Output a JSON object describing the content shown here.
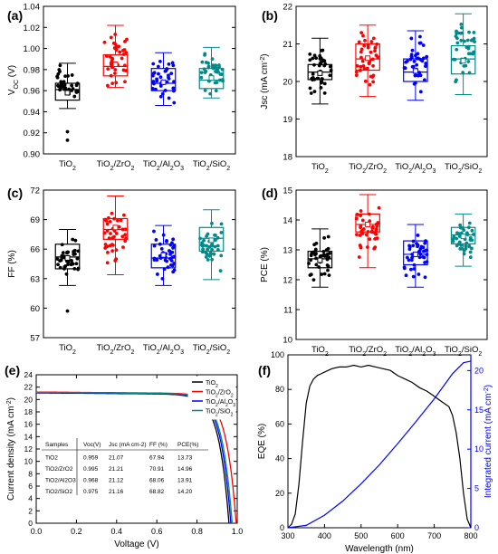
{
  "chart_data": [
    {
      "type": "box",
      "panel_label": "(a)",
      "ylabel": "V",
      "ylabel_sub": "OC",
      "ylabel_unit": " (V)",
      "ylim": [
        0.9,
        1.04
      ],
      "yticks": [
        "0.90",
        "0.92",
        "0.94",
        "0.96",
        "0.98",
        "1.00",
        "1.02",
        "1.04"
      ],
      "categories": [
        {
          "main": "TiO",
          "sub": "2",
          "rest": ""
        },
        {
          "main": "TiO",
          "sub": "2",
          "rest": "/ZrO",
          "sub2": "2"
        },
        {
          "main": "TiO",
          "sub": "2",
          "rest": "/Al",
          "sub2": "2",
          "rest2": "O",
          "sub3": "3"
        },
        {
          "main": "TiO",
          "sub": "2",
          "rest": "/SiO",
          "sub2": "2"
        }
      ],
      "series": [
        {
          "name": "TiO2",
          "color": "#000000",
          "whisker_low": 0.943,
          "q1": 0.951,
          "median": 0.961,
          "q3": 0.967,
          "whisker_high": 0.986,
          "mean": 0.958,
          "outliers": [
            0.921,
            0.913
          ]
        },
        {
          "name": "TiO2/ZrO2",
          "color": "#ff0000",
          "whisker_low": 0.963,
          "q1": 0.974,
          "median": 0.983,
          "q3": 0.994,
          "whisker_high": 1.022,
          "mean": 0.985,
          "outliers": []
        },
        {
          "name": "TiO2/Al2O3",
          "color": "#0000ff",
          "whisker_low": 0.946,
          "q1": 0.96,
          "median": 0.967,
          "q3": 0.981,
          "whisker_high": 0.996,
          "mean": 0.968,
          "outliers": []
        },
        {
          "name": "TiO2/SiO2",
          "color": "#008b8b",
          "whisker_low": 0.953,
          "q1": 0.962,
          "median": 0.97,
          "q3": 0.981,
          "whisker_high": 1.001,
          "mean": 0.972,
          "outliers": []
        }
      ]
    },
    {
      "type": "box",
      "panel_label": "(b)",
      "ylabel": "Jsc (mA cm",
      "ylabel_sup": "-2",
      "ylabel_end": ")",
      "ylim": [
        18,
        22
      ],
      "yticks": [
        "18",
        "19",
        "20",
        "21",
        "22"
      ],
      "series": [
        {
          "name": "TiO2",
          "color": "#000000",
          "whisker_low": 19.4,
          "q1": 20.05,
          "median": 20.25,
          "q3": 20.45,
          "whisker_high": 21.15,
          "mean": 20.22
        },
        {
          "name": "TiO2/ZrO2",
          "color": "#ff0000",
          "whisker_low": 19.6,
          "q1": 20.3,
          "median": 20.6,
          "q3": 21.0,
          "whisker_high": 21.5,
          "mean": 20.62
        },
        {
          "name": "TiO2/Al2O3",
          "color": "#0000ff",
          "whisker_low": 19.5,
          "q1": 20.0,
          "median": 20.25,
          "q3": 20.6,
          "whisker_high": 21.35,
          "mean": 20.28
        },
        {
          "name": "TiO2/SiO2",
          "color": "#008b8b",
          "whisker_low": 19.65,
          "q1": 20.2,
          "median": 20.6,
          "q3": 20.95,
          "whisker_high": 21.8,
          "mean": 20.55
        }
      ]
    },
    {
      "type": "box",
      "panel_label": "(c)",
      "ylabel": "FF (%)",
      "ylim": [
        57,
        72
      ],
      "yticks": [
        "57",
        "60",
        "63",
        "66",
        "69",
        "72"
      ],
      "series": [
        {
          "name": "TiO2",
          "color": "#000000",
          "whisker_low": 62.3,
          "q1": 64.0,
          "median": 65.2,
          "q3": 66.5,
          "whisker_high": 68.0,
          "mean": 65.1,
          "outliers": [
            59.7
          ]
        },
        {
          "name": "TiO2/ZrO2",
          "color": "#ff0000",
          "whisker_low": 63.4,
          "q1": 67.0,
          "median": 68.0,
          "q3": 69.1,
          "whisker_high": 71.4,
          "mean": 68.2
        },
        {
          "name": "TiO2/Al2O3",
          "color": "#0000ff",
          "whisker_low": 62.3,
          "q1": 64.1,
          "median": 65.1,
          "q3": 66.5,
          "whisker_high": 68.4,
          "mean": 65.4
        },
        {
          "name": "TiO2/SiO2",
          "color": "#008b8b",
          "whisker_low": 62.9,
          "q1": 65.8,
          "median": 67.1,
          "q3": 68.2,
          "whisker_high": 70.0,
          "mean": 66.9
        }
      ]
    },
    {
      "type": "box",
      "panel_label": "(d)",
      "ylabel": "PCE (%)",
      "ylim": [
        10,
        15
      ],
      "yticks": [
        "10",
        "11",
        "12",
        "13",
        "14",
        "15"
      ],
      "series": [
        {
          "name": "TiO2",
          "color": "#000000",
          "whisker_low": 11.75,
          "q1": 12.4,
          "median": 12.7,
          "q3": 12.95,
          "whisker_high": 13.7,
          "mean": 12.65
        },
        {
          "name": "TiO2/ZrO2",
          "color": "#ff0000",
          "whisker_low": 12.4,
          "q1": 13.6,
          "median": 13.85,
          "q3": 14.2,
          "whisker_high": 14.85,
          "mean": 13.85
        },
        {
          "name": "TiO2/Al2O3",
          "color": "#0000ff",
          "whisker_low": 11.75,
          "q1": 12.5,
          "median": 12.85,
          "q3": 13.3,
          "whisker_high": 13.85,
          "mean": 12.85
        },
        {
          "name": "TiO2/SiO2",
          "color": "#008b8b",
          "whisker_low": 12.45,
          "q1": 13.2,
          "median": 13.5,
          "q3": 13.75,
          "whisker_high": 14.2,
          "mean": 13.45
        }
      ]
    },
    {
      "type": "line",
      "panel_label": "(e)",
      "xlabel": "Voltage (V)",
      "ylabel": "Current density (mA cm",
      "ylabel_sup": "-2",
      "ylabel_end": ")",
      "xlim": [
        0.0,
        1.0
      ],
      "ylim": [
        0,
        24
      ],
      "xticks": [
        "0.0",
        "0.2",
        "0.4",
        "0.6",
        "0.8",
        "1.0"
      ],
      "yticks": [
        "0",
        "2",
        "4",
        "6",
        "8",
        "10",
        "12",
        "14",
        "16",
        "18",
        "20",
        "22",
        "24"
      ],
      "series": [
        {
          "name": "TiO2",
          "color": "#000000",
          "voc": 0.959,
          "jsc": 21.07
        },
        {
          "name": "TiO2/ZrO2",
          "color": "#ff0000",
          "voc": 0.995,
          "jsc": 21.21
        },
        {
          "name": "TiO2/Al2O3",
          "color": "#0000ff",
          "voc": 0.968,
          "jsc": 21.12
        },
        {
          "name": "TiO2/SiO2",
          "color": "#008b8b",
          "voc": 0.975,
          "jsc": 21.16
        }
      ],
      "table": {
        "headers": [
          "Samples",
          "Voc(V)",
          "Jsc (mA cm-2)",
          "FF (%)",
          "PCE(%)"
        ],
        "rows": [
          [
            "TiO2",
            "0.959",
            "21.07",
            "67.94",
            "13.73"
          ],
          [
            "TiO2/ZrO2",
            "0.995",
            "21.21",
            "70.91",
            "14.96"
          ],
          [
            "TiO2/Al2O3",
            "0.968",
            "21.12",
            "68.06",
            "13.91"
          ],
          [
            "TiO2/SiO2",
            "0.975",
            "21.16",
            "68.82",
            "14.20"
          ]
        ]
      }
    },
    {
      "type": "line",
      "panel_label": "(f)",
      "xlabel": "Wavelength (nm)",
      "ylabel": "EQE (%)",
      "ylabel_right": "Integrated current (mA cm",
      "ylabel_right_sup": "-2",
      "ylabel_right_end": ")",
      "xlim": [
        300,
        800
      ],
      "ylim": [
        0,
        100
      ],
      "ylim_right": [
        0,
        22
      ],
      "xticks": [
        "300",
        "400",
        "500",
        "600",
        "700",
        "800"
      ],
      "yticks": [
        "0",
        "20",
        "40",
        "60",
        "80",
        "100"
      ],
      "yticks_right": [
        "0",
        "5",
        "10",
        "15",
        "20"
      ],
      "series": [
        {
          "name": "EQE",
          "color": "#000000",
          "axis": "left",
          "x": [
            300,
            310,
            320,
            330,
            340,
            350,
            360,
            370,
            380,
            390,
            400,
            420,
            440,
            460,
            480,
            500,
            520,
            540,
            560,
            580,
            600,
            620,
            640,
            660,
            680,
            700,
            720,
            740,
            750,
            760,
            770,
            780,
            790,
            800
          ],
          "y": [
            0,
            2,
            8,
            25,
            50,
            72,
            82,
            86,
            88,
            89,
            90,
            92,
            93,
            93,
            94,
            93,
            94,
            93,
            92,
            91,
            88,
            86,
            84,
            81,
            79,
            76,
            73,
            70,
            65,
            55,
            40,
            20,
            5,
            0
          ]
        },
        {
          "name": "Integrated current",
          "color": "#0000ff",
          "axis": "right",
          "x": [
            300,
            350,
            400,
            450,
            500,
            550,
            600,
            650,
            700,
            750,
            780,
            800
          ],
          "y": [
            0,
            0.3,
            1.6,
            3.4,
            5.6,
            8.0,
            10.7,
            13.5,
            16.4,
            19.6,
            21.0,
            21.2
          ]
        }
      ]
    }
  ]
}
